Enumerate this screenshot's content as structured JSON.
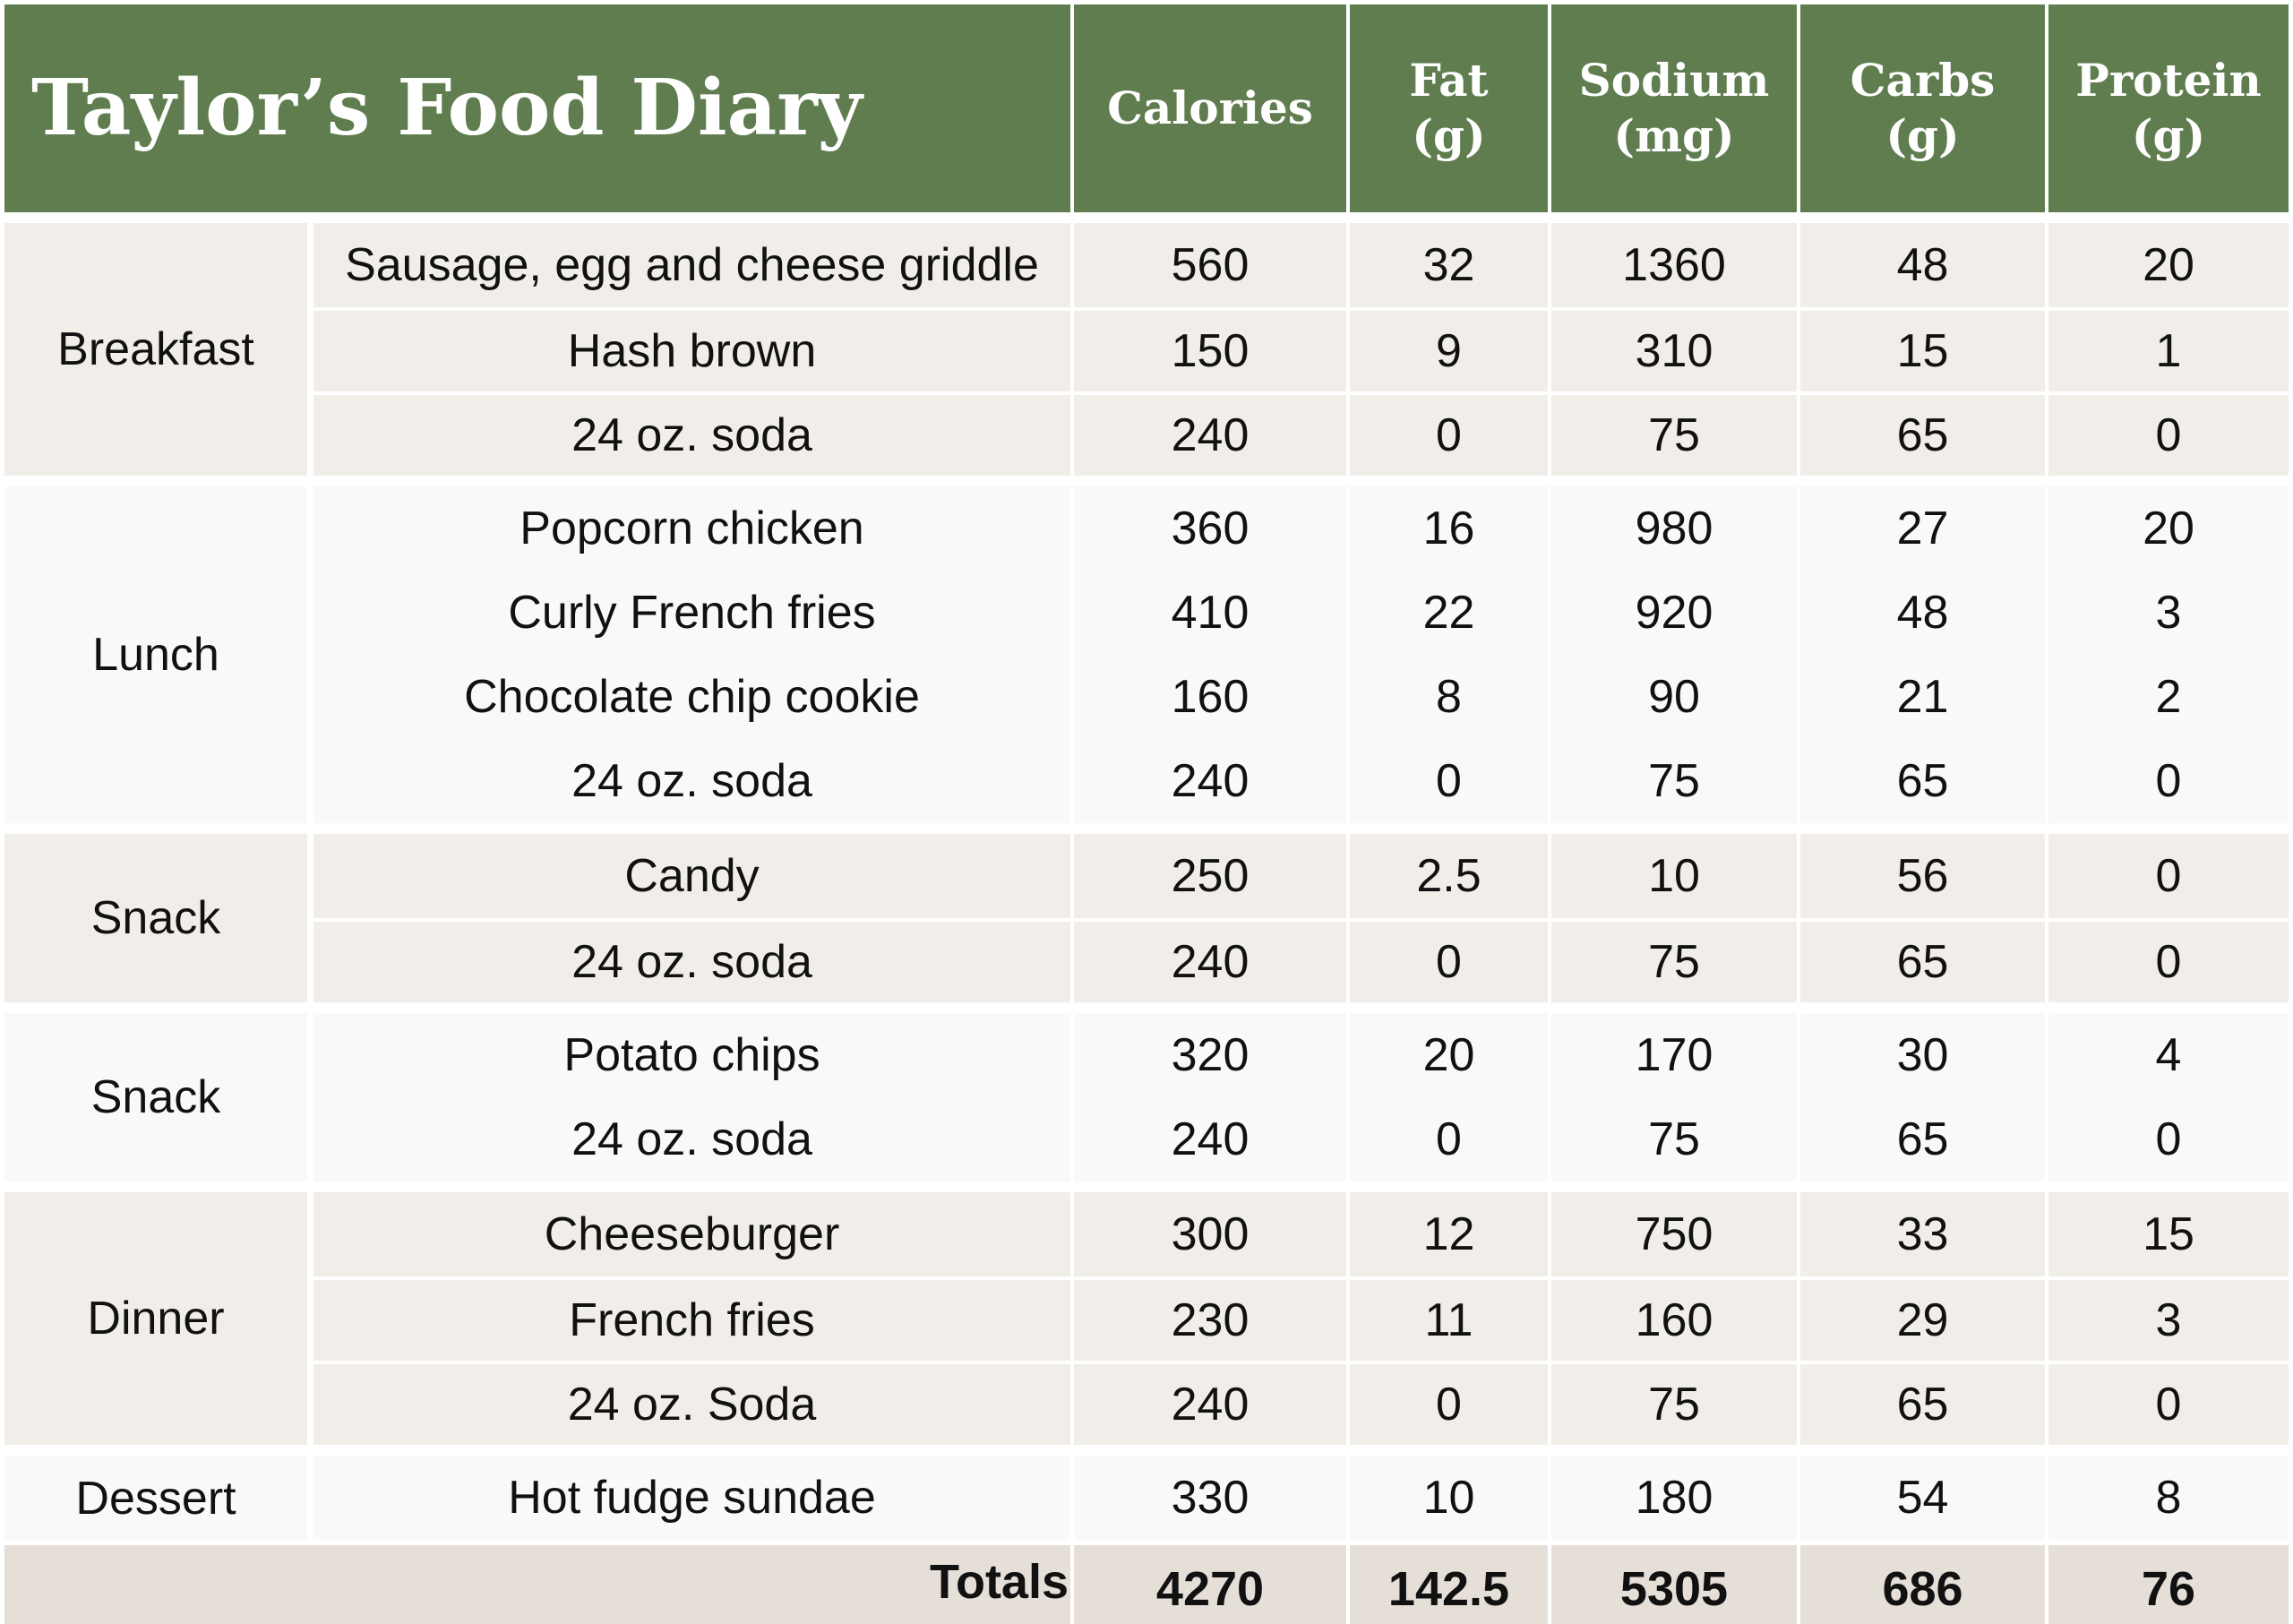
{
  "title": "Taylor’s Food Diary",
  "headers": {
    "calories": [
      "Calories"
    ],
    "fat": [
      "Fat",
      "(g)"
    ],
    "sodium": [
      "Sodium",
      "(mg)"
    ],
    "carbs": [
      "Carbs",
      "(g)"
    ],
    "protein": [
      "Protein",
      "(g)"
    ]
  },
  "meals": [
    {
      "name": "Breakfast",
      "items": [
        {
          "food": "Sausage, egg and cheese griddle",
          "calories": "560",
          "fat": "32",
          "sodium": "1360",
          "carbs": "48",
          "protein": "20"
        },
        {
          "food": "Hash brown",
          "calories": "150",
          "fat": "9",
          "sodium": "310",
          "carbs": "15",
          "protein": "1"
        },
        {
          "food": "24 oz. soda",
          "calories": "240",
          "fat": "0",
          "sodium": "75",
          "carbs": "65",
          "protein": "0"
        }
      ]
    },
    {
      "name": "Lunch",
      "items": [
        {
          "food": "Popcorn chicken",
          "calories": "360",
          "fat": "16",
          "sodium": "980",
          "carbs": "27",
          "protein": "20"
        },
        {
          "food": "Curly French fries",
          "calories": "410",
          "fat": "22",
          "sodium": "920",
          "carbs": "48",
          "protein": "3"
        },
        {
          "food": "Chocolate chip cookie",
          "calories": "160",
          "fat": "8",
          "sodium": "90",
          "carbs": "21",
          "protein": "2"
        },
        {
          "food": "24 oz. soda",
          "calories": "240",
          "fat": "0",
          "sodium": "75",
          "carbs": "65",
          "protein": "0"
        }
      ]
    },
    {
      "name": "Snack",
      "items": [
        {
          "food": "Candy",
          "calories": "250",
          "fat": "2.5",
          "sodium": "10",
          "carbs": "56",
          "protein": "0"
        },
        {
          "food": "24 oz. soda",
          "calories": "240",
          "fat": "0",
          "sodium": "75",
          "carbs": "65",
          "protein": "0"
        }
      ]
    },
    {
      "name": "Snack",
      "items": [
        {
          "food": "Potato chips",
          "calories": "320",
          "fat": "20",
          "sodium": "170",
          "carbs": "30",
          "protein": "4"
        },
        {
          "food": "24 oz. soda",
          "calories": "240",
          "fat": "0",
          "sodium": "75",
          "carbs": "65",
          "protein": "0"
        }
      ]
    },
    {
      "name": "Dinner",
      "items": [
        {
          "food": "Cheeseburger",
          "calories": "300",
          "fat": "12",
          "sodium": "750",
          "carbs": "33",
          "protein": "15"
        },
        {
          "food": "French fries",
          "calories": "230",
          "fat": "11",
          "sodium": "160",
          "carbs": "29",
          "protein": "3"
        },
        {
          "food": "24 oz. Soda",
          "calories": "240",
          "fat": "0",
          "sodium": "75",
          "carbs": "65",
          "protein": "0"
        }
      ]
    },
    {
      "name": "Dessert",
      "items": [
        {
          "food": "Hot fudge sundae",
          "calories": "330",
          "fat": "10",
          "sodium": "180",
          "carbs": "54",
          "protein": "8"
        }
      ]
    }
  ],
  "totals": {
    "label": "Totals",
    "calories": "4270",
    "fat": "142.5",
    "sodium": "5305",
    "carbs": "686",
    "protein": "76"
  },
  "colors": {
    "header_bg": "#607d4f",
    "header_text": "#ffffff",
    "band_shaded": "#f1eeea",
    "band_plain": "#faf9f8",
    "totals_bg": "#e5dfd7"
  }
}
